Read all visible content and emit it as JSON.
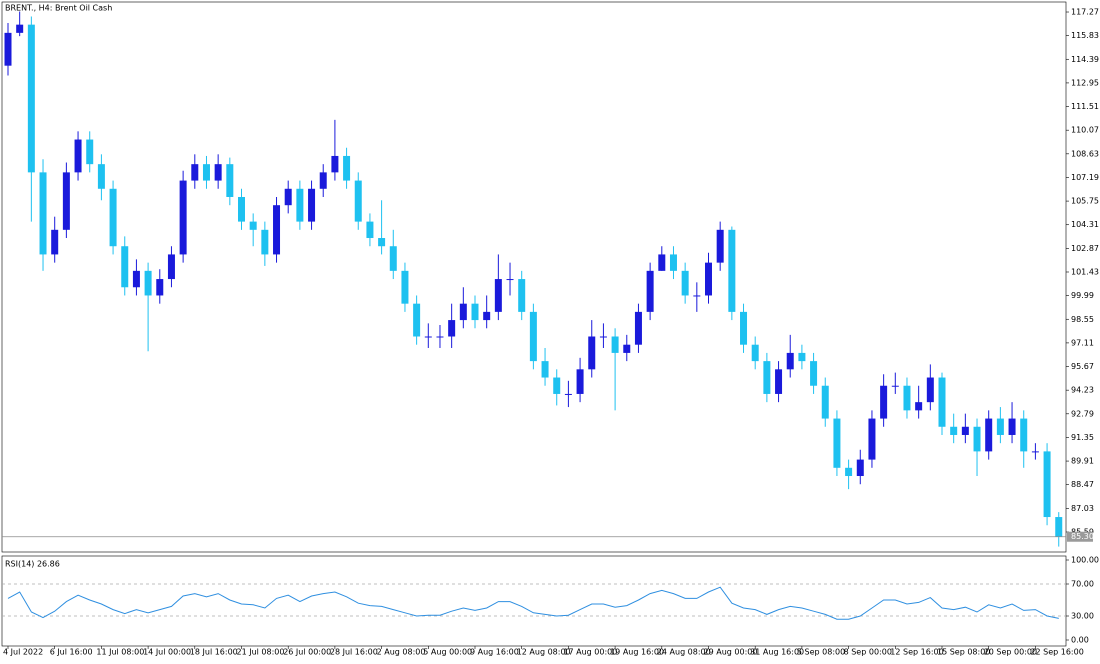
{
  "chart_data": [
    {
      "type": "candlestick",
      "title": "BRENT., H4:  Brent Oil Cash",
      "up_color": "#1a1adb",
      "down_color": "#1ec1f0",
      "ylim": [
        84.37,
        117.88
      ],
      "yticks": [
        117.27,
        115.83,
        114.39,
        112.95,
        111.51,
        110.07,
        108.63,
        107.19,
        105.75,
        104.31,
        102.87,
        101.43,
        99.99,
        98.55,
        97.11,
        95.67,
        94.23,
        92.79,
        91.35,
        89.91,
        88.47,
        87.03,
        85.59
      ],
      "last_price": {
        "value": 85.3,
        "label": "85.30"
      },
      "open": [
        114.0,
        116.0,
        116.5,
        107.5,
        102.5,
        104.0,
        107.5,
        109.5,
        108.0,
        106.5,
        103.0,
        100.5,
        101.5,
        100.0,
        101.0,
        102.5,
        107.0,
        108.0,
        107.0,
        108.0,
        106.0,
        104.5,
        104.0,
        102.5,
        105.5,
        106.5,
        104.5,
        106.5,
        107.5,
        108.5,
        107.0,
        104.5,
        103.5,
        103.0,
        101.5,
        99.5,
        97.5,
        97.5,
        97.5,
        98.5,
        99.5,
        98.5,
        99.0,
        101.0,
        101.0,
        99.0,
        96.0,
        95.0,
        94.0,
        94.0,
        95.5,
        97.5,
        97.5,
        96.5,
        97.0,
        99.0,
        101.5,
        102.5,
        101.5,
        100.0,
        100.0,
        102.0,
        104.0,
        99.0,
        97.0,
        96.0,
        94.0,
        95.5,
        96.5,
        96.0,
        94.5,
        92.5,
        89.5,
        89.0,
        90.0,
        92.5,
        94.5,
        94.5,
        93.0,
        93.5,
        95.0,
        92.0,
        91.5,
        92.0,
        90.5,
        92.5,
        91.5,
        92.5,
        90.5,
        90.5,
        86.5
      ],
      "high": [
        116.6,
        117.3,
        117.0,
        108.3,
        104.8,
        108.1,
        110.0,
        110.0,
        108.6,
        107.0,
        103.6,
        102.2,
        102.0,
        101.6,
        103.0,
        107.6,
        108.6,
        108.5,
        108.6,
        108.4,
        106.5,
        105.0,
        104.5,
        106.0,
        107.0,
        107.0,
        107.0,
        108.0,
        110.7,
        109.0,
        107.5,
        105.0,
        105.8,
        104.0,
        102.0,
        100.0,
        98.3,
        98.2,
        99.5,
        100.5,
        100.0,
        100.0,
        102.5,
        102.0,
        101.5,
        99.5,
        96.8,
        95.5,
        94.8,
        96.2,
        98.5,
        98.3,
        98.0,
        97.6,
        99.5,
        102.0,
        103.0,
        103.0,
        102.0,
        100.8,
        102.6,
        104.5,
        104.2,
        99.5,
        97.5,
        96.5,
        96.0,
        97.6,
        97.0,
        96.5,
        95.0,
        93.0,
        90.0,
        90.6,
        93.0,
        95.2,
        95.3,
        95.0,
        94.5,
        95.8,
        95.3,
        92.8,
        92.8,
        92.5,
        93.0,
        93.2,
        93.5,
        93.0,
        91.0,
        91.0,
        86.8
      ],
      "low": [
        113.4,
        115.8,
        104.5,
        101.5,
        102.0,
        103.5,
        107.0,
        107.5,
        105.8,
        102.5,
        100.0,
        100.0,
        96.6,
        99.5,
        100.5,
        102.0,
        106.5,
        106.5,
        106.5,
        105.5,
        104.0,
        103.0,
        101.8,
        102.0,
        105.0,
        104.0,
        104.0,
        106.0,
        107.0,
        106.5,
        104.0,
        103.0,
        102.5,
        101.0,
        99.0,
        97.0,
        96.8,
        96.8,
        96.8,
        98.0,
        98.0,
        98.0,
        98.5,
        100.0,
        98.5,
        95.5,
        94.5,
        93.3,
        93.2,
        93.5,
        95.0,
        96.8,
        93.0,
        96.0,
        96.5,
        98.5,
        101.5,
        101.0,
        99.5,
        99.0,
        99.5,
        101.5,
        98.5,
        96.5,
        95.5,
        93.5,
        93.5,
        95.0,
        95.5,
        94.0,
        92.0,
        89.0,
        88.2,
        88.5,
        89.5,
        92.0,
        94.0,
        92.5,
        92.5,
        93.0,
        91.5,
        91.0,
        91.0,
        89.0,
        90.0,
        91.0,
        91.0,
        89.5,
        90.0,
        86.0,
        84.7
      ],
      "close": [
        116.0,
        116.5,
        107.5,
        102.5,
        104.0,
        107.5,
        109.5,
        108.0,
        106.5,
        103.0,
        100.5,
        101.5,
        100.0,
        101.0,
        102.5,
        107.0,
        108.0,
        107.0,
        108.0,
        106.0,
        104.5,
        104.0,
        102.5,
        105.5,
        106.5,
        104.5,
        106.5,
        107.5,
        108.5,
        107.0,
        104.5,
        103.5,
        103.0,
        101.5,
        99.5,
        97.5,
        97.5,
        97.5,
        98.5,
        99.5,
        98.5,
        99.0,
        101.0,
        101.0,
        99.0,
        96.0,
        95.0,
        94.0,
        94.0,
        95.5,
        97.5,
        97.5,
        96.5,
        97.0,
        99.0,
        101.5,
        102.5,
        101.5,
        100.0,
        100.0,
        102.0,
        104.0,
        99.0,
        97.0,
        96.0,
        94.0,
        95.5,
        96.5,
        96.0,
        94.5,
        92.5,
        89.5,
        89.0,
        90.0,
        92.5,
        94.5,
        94.5,
        93.0,
        93.5,
        95.0,
        92.0,
        91.5,
        92.0,
        90.5,
        92.5,
        91.5,
        92.5,
        90.5,
        90.5,
        86.5,
        85.3
      ]
    },
    {
      "type": "line",
      "title": "RSI(14) 26.86",
      "color": "#2f8fe0",
      "ylim": [
        0,
        100
      ],
      "yticks": [
        {
          "value": 100,
          "label": "100.00"
        },
        {
          "value": 70,
          "label": "70.00"
        },
        {
          "value": 30,
          "label": "30.00"
        },
        {
          "value": 0,
          "label": "0.00"
        }
      ],
      "categories": [
        "4 Jul 2022",
        null,
        null,
        null,
        "6 Jul 16:00",
        null,
        null,
        null,
        "11 Jul 08:00",
        null,
        null,
        null,
        "14 Jul 00:00",
        null,
        null,
        null,
        "18 Jul 16:00",
        null,
        null,
        null,
        "21 Jul 08:00",
        null,
        null,
        null,
        "26 Jul 00:00",
        null,
        null,
        null,
        "28 Jul 16:00",
        null,
        null,
        null,
        "2 Aug 08:00",
        null,
        null,
        null,
        "5 Aug 00:00",
        null,
        null,
        null,
        "9 Aug 16:00",
        null,
        null,
        null,
        "12 Aug 08:00",
        null,
        null,
        null,
        "17 Aug 00:00",
        null,
        null,
        null,
        "19 Aug 16:00",
        null,
        null,
        null,
        "24 Aug 08:00",
        null,
        null,
        null,
        "29 Aug 00:00",
        null,
        null,
        null,
        "31 Aug 16:00",
        null,
        null,
        null,
        "5 Sep 08:00",
        null,
        null,
        null,
        "8 Sep 00:00",
        null,
        null,
        null,
        "12 Sep 16:00",
        null,
        null,
        null,
        "15 Sep 08:00",
        null,
        null,
        null,
        "20 Sep 00:00",
        null,
        null,
        null,
        "22 Sep 16:00",
        null,
        null
      ],
      "values": [
        52,
        60,
        35,
        28,
        36,
        48,
        56,
        50,
        45,
        38,
        33,
        38,
        34,
        38,
        42,
        55,
        58,
        54,
        58,
        50,
        45,
        44,
        40,
        52,
        56,
        48,
        55,
        58,
        60,
        54,
        46,
        43,
        42,
        38,
        34,
        30,
        31,
        31,
        36,
        40,
        37,
        40,
        48,
        48,
        42,
        34,
        32,
        30,
        31,
        38,
        45,
        45,
        41,
        43,
        50,
        58,
        62,
        58,
        52,
        52,
        60,
        66,
        46,
        40,
        38,
        32,
        38,
        42,
        40,
        36,
        32,
        26,
        26,
        30,
        40,
        50,
        50,
        45,
        47,
        53,
        40,
        38,
        41,
        35,
        44,
        40,
        45,
        37,
        38,
        30,
        27
      ]
    }
  ]
}
